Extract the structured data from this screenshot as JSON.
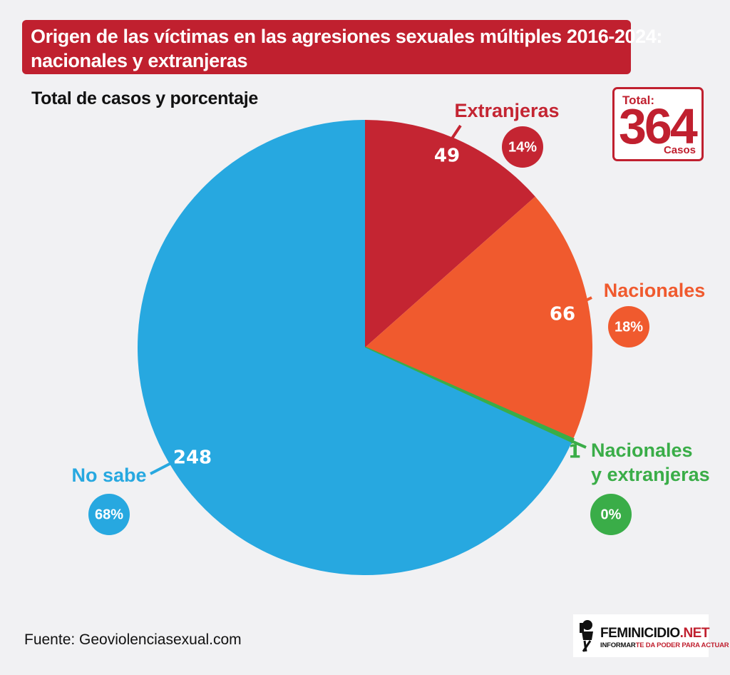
{
  "title": {
    "line1": "Origen de las víctimas en las agresiones sexuales múltiples 2016-2024:",
    "line2": "nacionales y extranjeras"
  },
  "subtitle": "Total de casos y porcentaje",
  "total": {
    "label": "Total:",
    "value": "364",
    "unit": "Casos"
  },
  "source": "Fuente: Geoviolenciasexual.com",
  "logo": {
    "name_main": "FEMINICIDIO",
    "name_suffix": ".NET",
    "tagline_a": "INFORMAR",
    "tagline_b": "TE DA PODER PARA ACTUAR"
  },
  "colors": {
    "extranjeras": "#c42532",
    "nacionales": "#f05a2e",
    "ambas": "#3aad48",
    "no_sabe": "#27a8e0"
  },
  "chart_data": {
    "type": "pie",
    "title": "Origen de las víctimas en las agresiones sexuales múltiples 2016-2024: nacionales y extranjeras",
    "subtitle": "Total de casos y porcentaje",
    "total": 364,
    "slices": [
      {
        "label": "Extranjeras",
        "value": 49,
        "percent": "14%",
        "color": "#c42532",
        "label_lines": [
          "Extranjeras"
        ]
      },
      {
        "label": "Nacionales",
        "value": 66,
        "percent": "18%",
        "color": "#f05a2e",
        "label_lines": [
          "Nacionales"
        ]
      },
      {
        "label": "Nacionales y extranjeras",
        "value": 1,
        "percent": "0%",
        "color": "#3aad48",
        "label_lines": [
          "Nacionales",
          "y extranjeras"
        ]
      },
      {
        "label": "No sabe",
        "value": 248,
        "percent": "68%",
        "color": "#27a8e0",
        "label_lines": [
          "No sabe"
        ]
      }
    ]
  }
}
